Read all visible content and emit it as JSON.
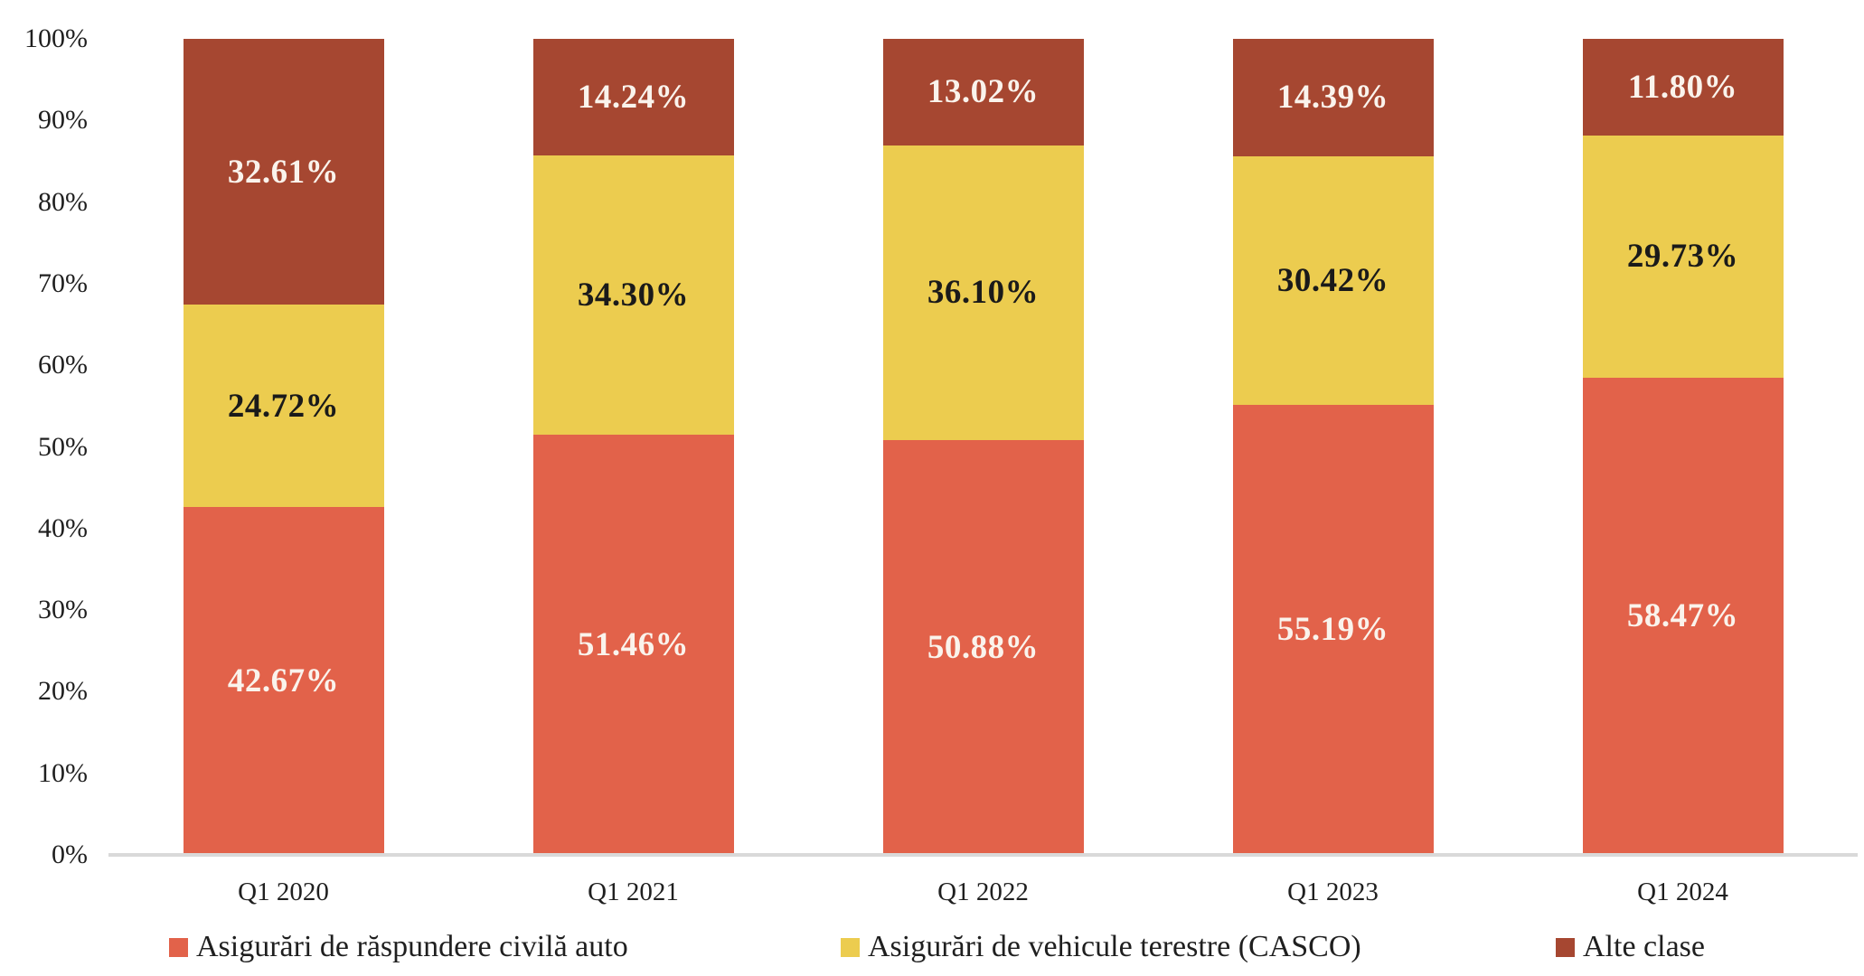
{
  "chart_data": {
    "type": "bar",
    "variant": "stacked-100-percent",
    "title": "",
    "xlabel": "",
    "ylabel": "",
    "categories": [
      "Q1 2020",
      "Q1 2021",
      "Q1 2022",
      "Q1 2023",
      "Q1 2024"
    ],
    "series": [
      {
        "name": "Asigurări de răspundere civilă auto",
        "color": "#E2624A",
        "label_color": "#FAF3EC",
        "values": [
          42.67,
          51.46,
          50.88,
          55.19,
          58.47
        ]
      },
      {
        "name": "Asigurări de vehicule terestre (CASCO)",
        "color": "#ECCC4F",
        "label_color": "#1A1A1A",
        "values": [
          24.72,
          34.3,
          36.1,
          30.42,
          29.73
        ]
      },
      {
        "name": "Alte clase",
        "color": "#A64731",
        "label_color": "#FAF3EC",
        "values": [
          32.61,
          14.24,
          13.02,
          14.39,
          11.8
        ]
      }
    ],
    "value_label_format": "0.00%",
    "y_axis": {
      "min": 0,
      "max": 100,
      "step": 10,
      "tick_labels": [
        "0%",
        "10%",
        "20%",
        "30%",
        "40%",
        "50%",
        "60%",
        "70%",
        "80%",
        "90%",
        "100%"
      ]
    },
    "grid": false,
    "axis_line_color": "#D9D9D9",
    "legend_position": "bottom"
  }
}
